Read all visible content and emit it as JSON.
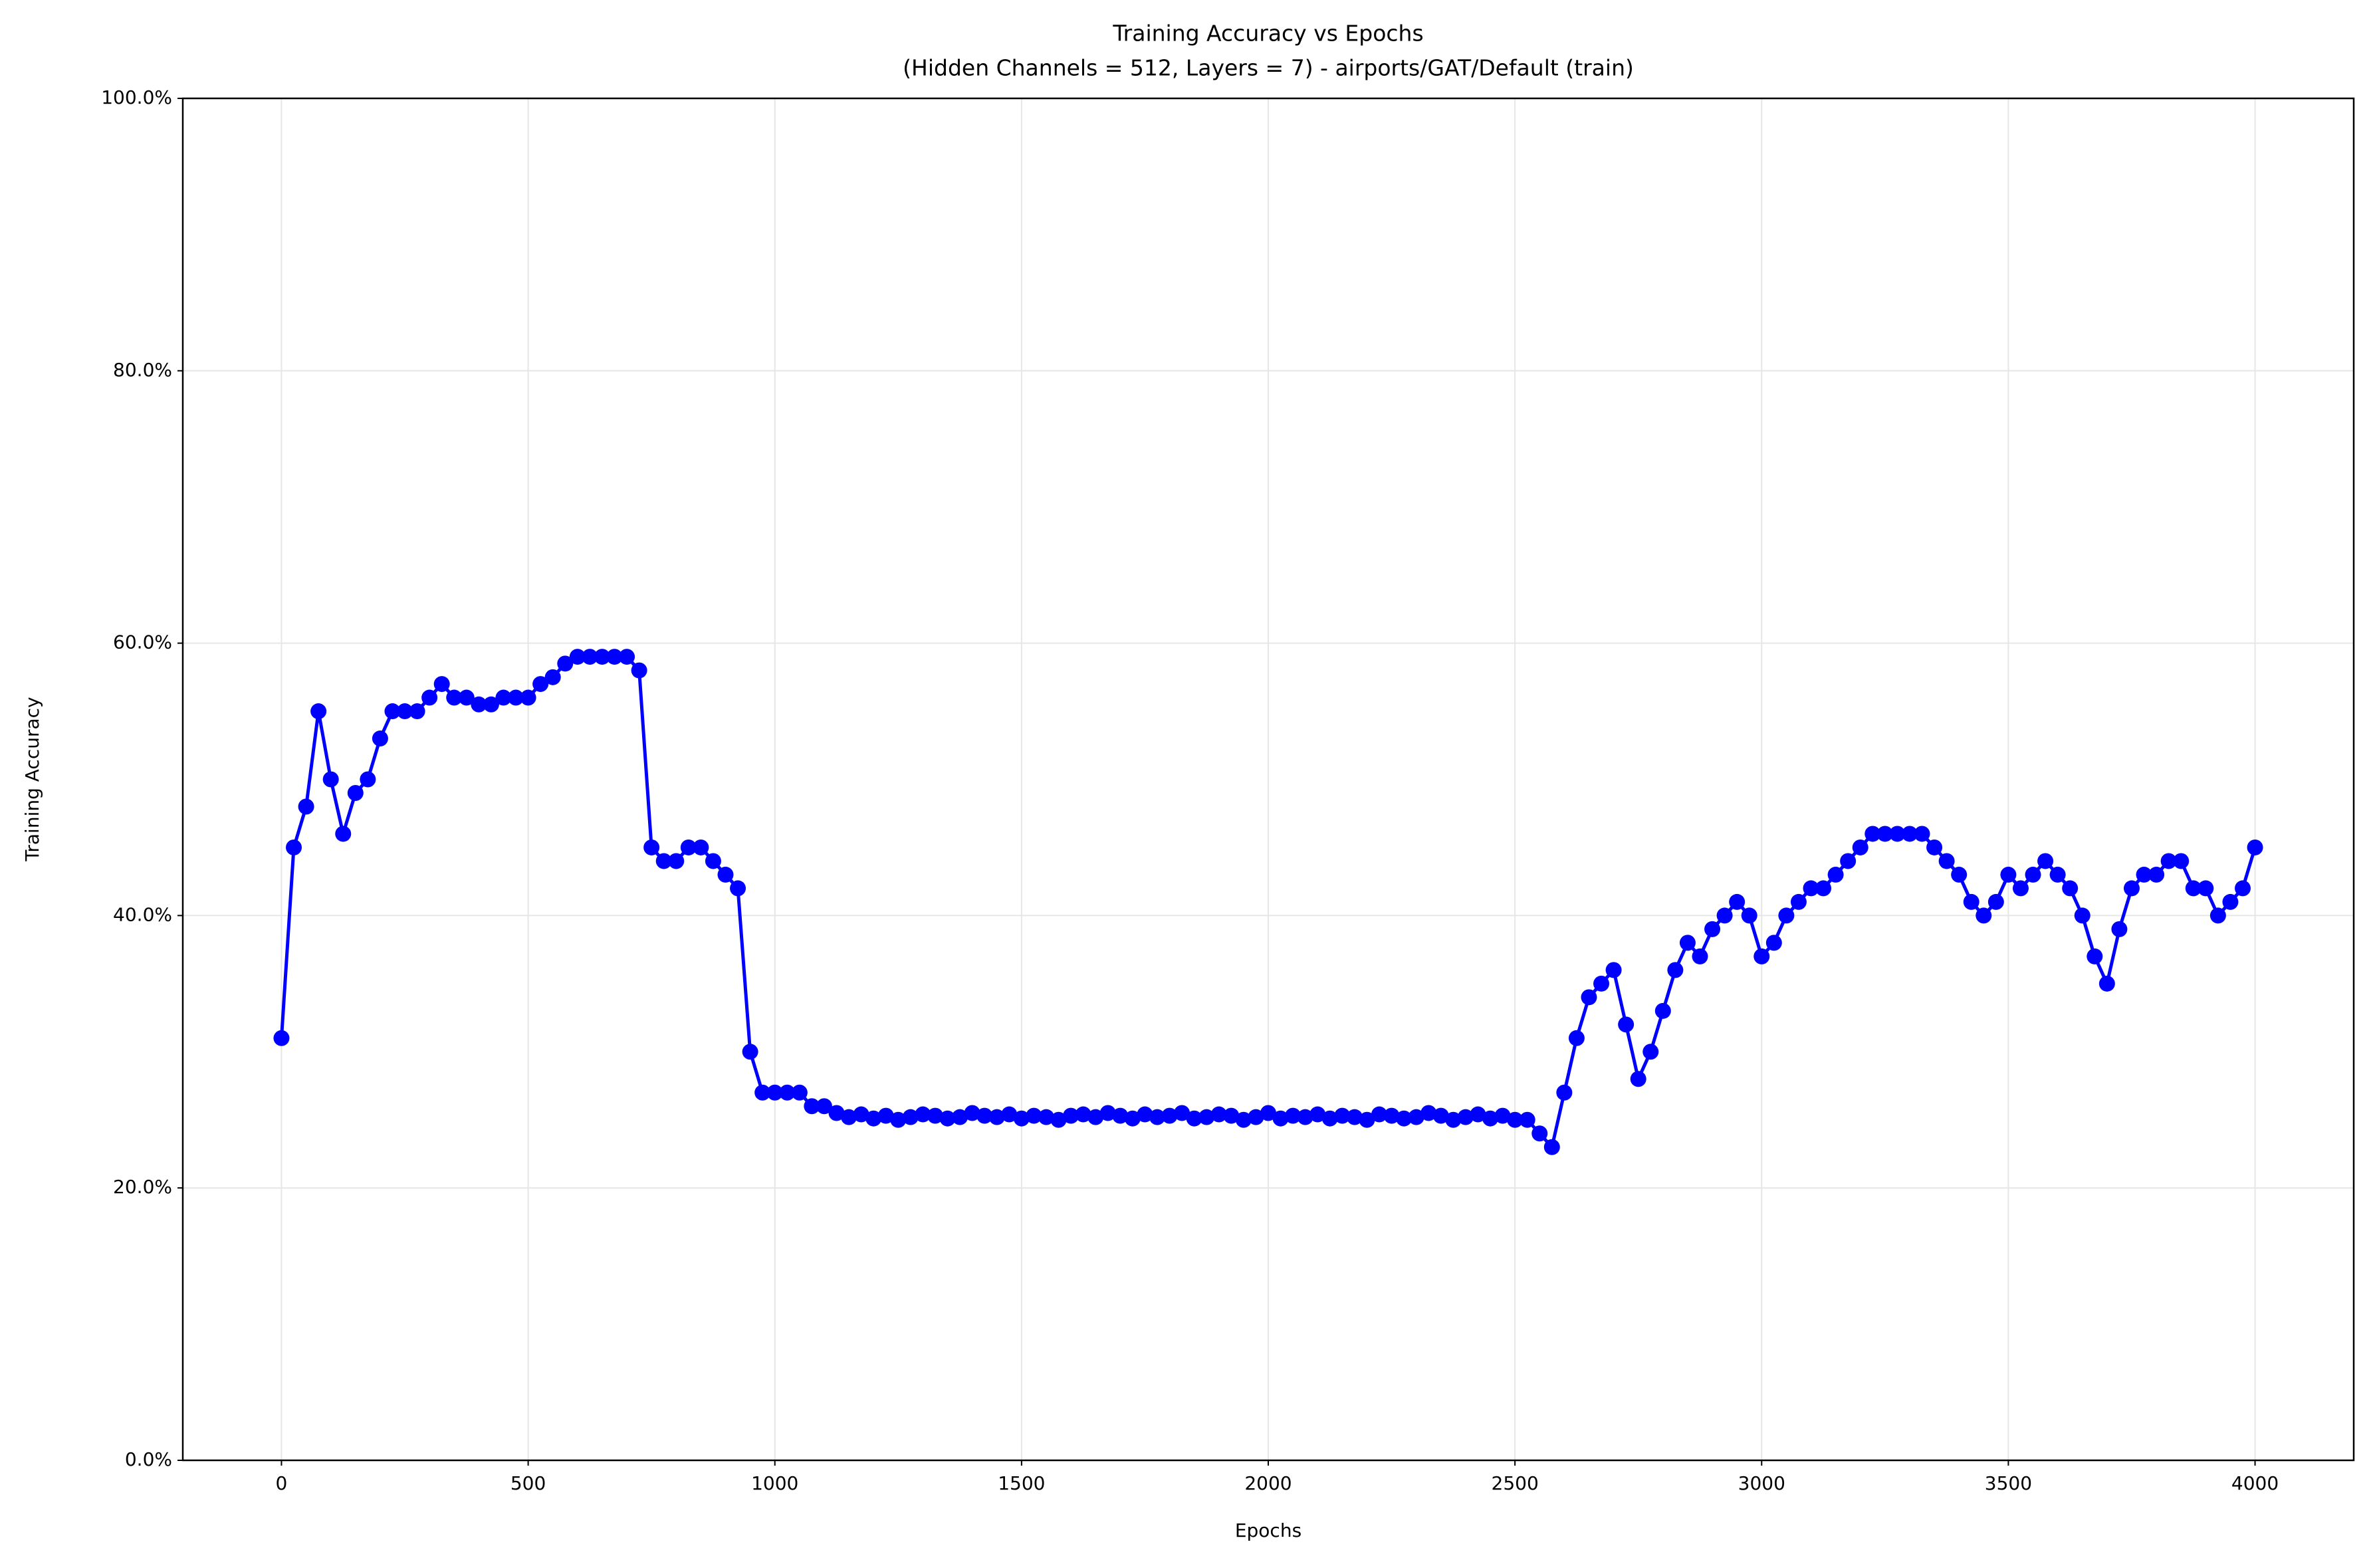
{
  "chart_data": {
    "type": "line",
    "title": "Training Accuracy vs Epochs",
    "subtitle": "(Hidden Channels = 512, Layers = 7) - airports/GAT/Default (train)",
    "x_label": "Epochs",
    "y_label": "Training Accuracy",
    "xlim": [
      -200,
      4200
    ],
    "ylim": [
      0,
      100
    ],
    "xticks": [
      0,
      500,
      1000,
      1500,
      2000,
      2500,
      3000,
      3500,
      4000
    ],
    "yticks": [
      {
        "value": 0,
        "label": "0.0%"
      },
      {
        "value": 20,
        "label": "20.0%"
      },
      {
        "value": 40,
        "label": "40.0%"
      },
      {
        "value": 60,
        "label": "60.0%"
      },
      {
        "value": 80,
        "label": "80.0%"
      },
      {
        "value": 100,
        "label": "100.0%"
      }
    ],
    "grid": true,
    "x": [
      0,
      25,
      50,
      75,
      100,
      125,
      150,
      175,
      200,
      225,
      250,
      275,
      300,
      325,
      350,
      375,
      400,
      425,
      450,
      475,
      500,
      525,
      550,
      575,
      600,
      625,
      650,
      675,
      700,
      725,
      750,
      775,
      800,
      825,
      850,
      875,
      900,
      925,
      950,
      975,
      1000,
      1025,
      1050,
      1075,
      1100,
      1125,
      1150,
      1175,
      1200,
      1225,
      1250,
      1275,
      1300,
      1325,
      1350,
      1375,
      1400,
      1425,
      1450,
      1475,
      1500,
      1525,
      1550,
      1575,
      1600,
      1625,
      1650,
      1675,
      1700,
      1725,
      1750,
      1775,
      1800,
      1825,
      1850,
      1875,
      1900,
      1925,
      1950,
      1975,
      2000,
      2025,
      2050,
      2075,
      2100,
      2125,
      2150,
      2175,
      2200,
      2225,
      2250,
      2275,
      2300,
      2325,
      2350,
      2375,
      2400,
      2425,
      2450,
      2475,
      2500,
      2525,
      2550,
      2575,
      2600,
      2625,
      2650,
      2675,
      2700,
      2725,
      2750,
      2775,
      2800,
      2825,
      2850,
      2875,
      2900,
      2925,
      2950,
      2975,
      3000,
      3025,
      3050,
      3075,
      3100,
      3125,
      3150,
      3175,
      3200,
      3225,
      3250,
      3275,
      3300,
      3325,
      3350,
      3375,
      3400,
      3425,
      3450,
      3475,
      3500,
      3525,
      3550,
      3575,
      3600,
      3625,
      3650,
      3675,
      3700,
      3725,
      3750,
      3775,
      3800,
      3825,
      3850,
      3875,
      3900,
      3925,
      3950,
      3975,
      4000
    ],
    "series": [
      {
        "name": "Training Accuracy",
        "color": "#0000ff",
        "values": [
          31,
          45,
          48,
          55,
          50,
          46,
          49,
          50,
          53,
          55,
          55,
          55,
          56,
          57,
          56,
          56,
          55.5,
          55.5,
          56,
          56,
          56,
          57,
          57.5,
          58.5,
          59,
          59,
          59,
          59,
          59,
          58,
          45,
          44,
          44,
          45,
          45,
          44,
          43,
          42,
          30,
          27,
          27,
          27,
          27,
          26,
          26,
          25.5,
          25.2,
          25.4,
          25.1,
          25.3,
          25.0,
          25.2,
          25.4,
          25.3,
          25.1,
          25.2,
          25.5,
          25.3,
          25.2,
          25.4,
          25.1,
          25.3,
          25.2,
          25.0,
          25.3,
          25.4,
          25.2,
          25.5,
          25.3,
          25.1,
          25.4,
          25.2,
          25.3,
          25.5,
          25.1,
          25.2,
          25.4,
          25.3,
          25.0,
          25.2,
          25.5,
          25.1,
          25.3,
          25.2,
          25.4,
          25.1,
          25.3,
          25.2,
          25.0,
          25.4,
          25.3,
          25.1,
          25.2,
          25.5,
          25.3,
          25.0,
          25.2,
          25.4,
          25.1,
          25.3,
          25,
          25,
          24,
          23,
          27,
          31,
          34,
          35,
          36,
          32,
          28,
          30,
          33,
          36,
          38,
          37,
          39,
          40,
          41,
          40,
          37,
          38,
          40,
          41,
          42,
          42,
          43,
          44,
          45,
          46,
          46,
          46,
          46,
          46,
          45,
          44,
          43,
          41,
          40,
          41,
          43,
          42,
          43,
          44,
          43,
          42,
          40,
          37,
          35,
          39,
          42,
          43,
          43,
          44,
          44,
          42,
          42,
          40,
          41,
          42,
          45
        ]
      }
    ]
  }
}
